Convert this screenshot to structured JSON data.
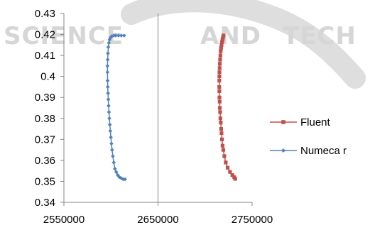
{
  "chart_data": {
    "type": "scatter",
    "title": "",
    "xlabel": "",
    "ylabel": "",
    "xlim": [
      2550000,
      2750000
    ],
    "ylim": [
      0.34,
      0.43
    ],
    "x_ticks": [
      "2550000",
      "2650000",
      "2750000"
    ],
    "y_ticks": [
      "0.34",
      "0.35",
      "0.36",
      "0.37",
      "0.38",
      "0.39",
      "0.4",
      "0.41",
      "0.42",
      "0.43"
    ],
    "grid": false,
    "legend_position": "right",
    "series": [
      {
        "name": "Fluent",
        "color": "#C0504D",
        "marker": "square",
        "x": [
          2719500,
          2719000,
          2718500,
          2718000,
          2717500,
          2717000,
          2716600,
          2716300,
          2716000,
          2715700,
          2715500,
          2715300,
          2715200,
          2715100,
          2715100,
          2715200,
          2715300,
          2715500,
          2715700,
          2716000,
          2716300,
          2716700,
          2717100,
          2717500,
          2718000,
          2718600,
          2719400,
          2720500,
          2722000,
          2724000,
          2726500,
          2729000,
          2731000,
          2732000
        ],
        "y": [
          0.4195,
          0.4185,
          0.4175,
          0.4163,
          0.415,
          0.4135,
          0.412,
          0.41,
          0.408,
          0.406,
          0.404,
          0.402,
          0.4,
          0.398,
          0.395,
          0.393,
          0.39,
          0.388,
          0.385,
          0.383,
          0.38,
          0.378,
          0.375,
          0.373,
          0.37,
          0.367,
          0.365,
          0.362,
          0.359,
          0.3565,
          0.3545,
          0.353,
          0.352,
          0.3512
        ]
      },
      {
        "name": "Numeca",
        "color": "#4F81BD",
        "marker": "diamond",
        "x": [
          2614000,
          2611000,
          2608000,
          2605000,
          2603000,
          2601000,
          2599500,
          2598500,
          2597800,
          2597200,
          2596800,
          2596500,
          2596300,
          2596300,
          2596400,
          2596600,
          2596900,
          2597200,
          2597500,
          2597900,
          2598300,
          2598800,
          2599300,
          2599900,
          2600500,
          2601200,
          2602000,
          2603000,
          2604200,
          2605600,
          2607200,
          2609000,
          2611000,
          2613000,
          2615000
        ],
        "y": [
          0.4195,
          0.4195,
          0.4195,
          0.4195,
          0.4195,
          0.4192,
          0.4185,
          0.4175,
          0.416,
          0.414,
          0.411,
          0.408,
          0.405,
          0.402,
          0.398,
          0.395,
          0.392,
          0.389,
          0.386,
          0.383,
          0.38,
          0.377,
          0.374,
          0.371,
          0.368,
          0.365,
          0.362,
          0.359,
          0.356,
          0.3545,
          0.353,
          0.352,
          0.3515,
          0.351,
          0.351
        ]
      }
    ],
    "legend_labels": [
      "Fluent",
      "Numeca r"
    ]
  },
  "watermark": {
    "left": "SCIENCE",
    "middle": "AND",
    "right": "TECH"
  }
}
